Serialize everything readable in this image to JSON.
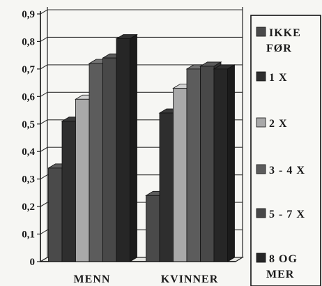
{
  "chart_data": {
    "type": "bar",
    "categories": [
      "MENN",
      "KVINNER"
    ],
    "series": [
      {
        "name": "IKKE FØR",
        "values": [
          0.34,
          0.24
        ],
        "color": "#4a4a4a"
      },
      {
        "name": "1 X",
        "values": [
          0.51,
          0.54
        ],
        "color": "#2e2e2e"
      },
      {
        "name": "2 X",
        "values": [
          0.59,
          0.63
        ],
        "color": "#a9a9a9"
      },
      {
        "name": "3 - 4 X",
        "values": [
          0.72,
          0.7
        ],
        "color": "#5c5c5c"
      },
      {
        "name": "5 - 7 X",
        "values": [
          0.74,
          0.71
        ],
        "color": "#484848"
      },
      {
        "name": "8 OG MER",
        "values": [
          0.81,
          0.7
        ],
        "color": "#262626"
      }
    ],
    "yticks": [
      "0",
      "0,1",
      "0,2",
      "0,3",
      "0,4",
      "0,5",
      "0,6",
      "0,7",
      "0,8",
      "0,9"
    ],
    "ylim": [
      0,
      0.9
    ],
    "grid": true,
    "legend_position": "right",
    "style": "3d-clustered-bar"
  }
}
